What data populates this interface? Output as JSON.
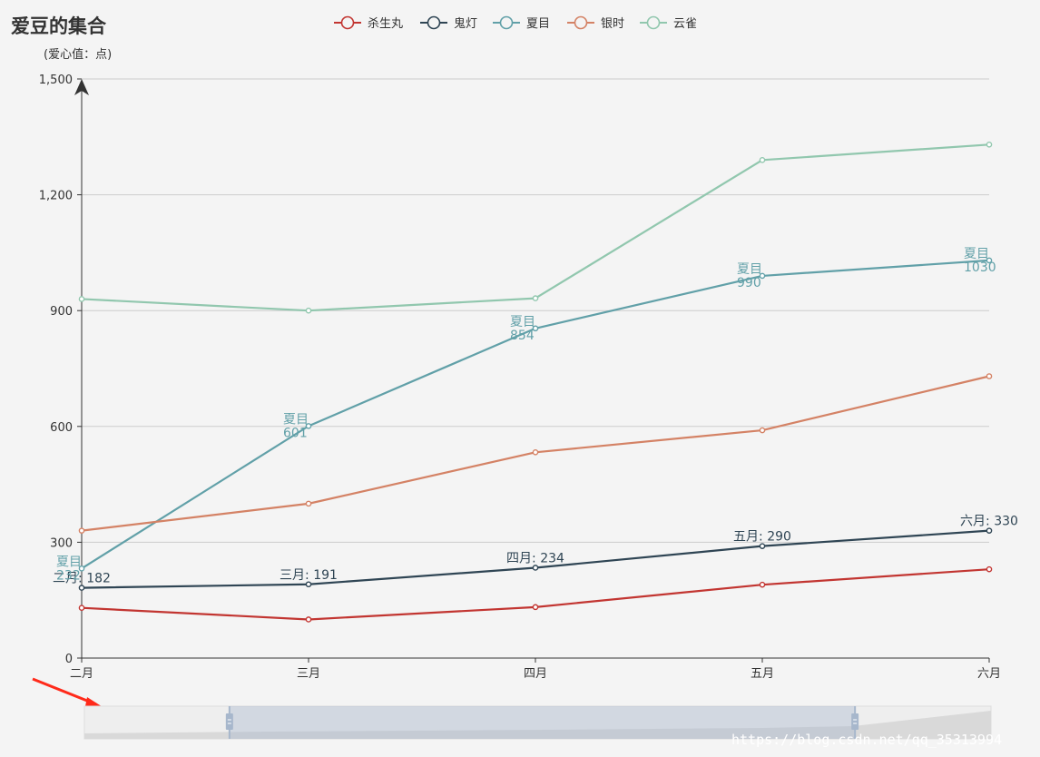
{
  "chart_data": {
    "type": "line",
    "title": "爱豆的集合",
    "ylabel": "(爱心值：点)",
    "ylim": [
      0,
      1500
    ],
    "yticks": [
      0,
      300,
      600,
      900,
      1200,
      1500
    ],
    "ytick_labels": [
      "0",
      "300",
      "600",
      "900",
      "1,200",
      "1,500"
    ],
    "categories": [
      "二月",
      "三月",
      "四月",
      "五月",
      "六月"
    ],
    "legend_position": "top-center",
    "grid": "horizontal",
    "series": [
      {
        "name": "杀生丸",
        "color": "#c23531",
        "values": [
          130,
          100,
          132,
          190,
          230
        ]
      },
      {
        "name": "鬼灯",
        "color": "#2f4554",
        "values": [
          182,
          191,
          234,
          290,
          330
        ],
        "labels": [
          "二月: 182",
          "三月: 191",
          "四月: 234",
          "五月: 290",
          "六月: 330"
        ]
      },
      {
        "name": "夏目",
        "color": "#61a0a8",
        "values": [
          232,
          601,
          854,
          990,
          1030
        ],
        "labels": [
          "夏目\n232",
          "夏目\n601",
          "夏目\n854",
          "夏目\n990",
          "夏目\n1030"
        ]
      },
      {
        "name": "银时",
        "color": "#d48265",
        "values": [
          330,
          400,
          533,
          590,
          730
        ]
      },
      {
        "name": "云雀",
        "color": "#91c7ae",
        "values": [
          930,
          900,
          932,
          1290,
          1330
        ]
      }
    ]
  },
  "datazoom": {
    "start_fraction": 0.16,
    "end_fraction": 0.85
  },
  "watermark": "https://blog.csdn.net/qq_35313994",
  "colors": {
    "axis": "#333333",
    "grid": "#cccccc",
    "arrow": "#ff2a1a"
  }
}
